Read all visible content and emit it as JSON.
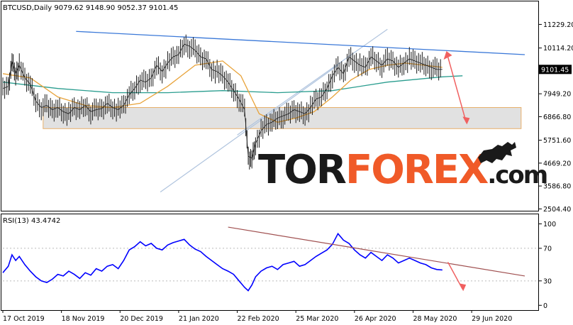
{
  "header": {
    "symbol_line": "BTCUSD,Daily  9079.62 9148.90 9052.37 9101.45"
  },
  "watermark": {
    "part1": "TOR",
    "part2": "FOREX",
    "part3": ".com",
    "color_dark": "#1a1a1a",
    "color_accent": "#f05a28"
  },
  "colors": {
    "price_bars": "#1a1a1a",
    "ma_fast": "#e8a33a",
    "ma_slow": "#2a9d8f",
    "resistance_line": "#3a78d8",
    "channel_line": "#b0c4de",
    "support_zone_fill": "#d9d9d9",
    "support_zone_border": "#e8b06a",
    "forecast_arrow": "#f06060",
    "rsi_line": "#0000ff",
    "rsi_trend": "#a05050",
    "current_price_box": "#000000"
  },
  "chart_data": [
    {
      "type": "candlestick",
      "title": "",
      "current_price": 9101.45,
      "current_price_label": "9101.45",
      "y_ticks": [
        11229.2,
        10114.2,
        7949.2,
        6866.8,
        5751.6,
        4669.2,
        3586.8,
        2504.4
      ],
      "y_tick_labels": [
        "11229.20",
        "10114.20",
        "7949.20",
        "6866.80",
        "5751.60",
        "4669.20",
        "3586.80",
        "2504.40"
      ],
      "ylim": [
        2450,
        12250
      ],
      "x_ticks": [
        "17 Oct 2019",
        "18 Nov 2019",
        "20 Dec 2019",
        "21 Jan 2020",
        "22 Feb 2020",
        "25 Mar 2020",
        "26 Apr 2020",
        "28 May 2020",
        "29 Jun 2020"
      ],
      "x_range_days": [
        0,
        285
      ],
      "x_tick_days": [
        0,
        32,
        64,
        96,
        128,
        160,
        192,
        224,
        256
      ],
      "price_path": [
        [
          0,
          8200
        ],
        [
          3,
          8300
        ],
        [
          5,
          9500
        ],
        [
          7,
          8900
        ],
        [
          9,
          9300
        ],
        [
          12,
          8700
        ],
        [
          15,
          8400
        ],
        [
          18,
          7600
        ],
        [
          21,
          7300
        ],
        [
          24,
          7400
        ],
        [
          27,
          7200
        ],
        [
          30,
          7300
        ],
        [
          33,
          7100
        ],
        [
          36,
          7000
        ],
        [
          39,
          7300
        ],
        [
          42,
          7200
        ],
        [
          45,
          7400
        ],
        [
          48,
          7100
        ],
        [
          51,
          7200
        ],
        [
          54,
          7250
        ],
        [
          57,
          7500
        ],
        [
          60,
          7300
        ],
        [
          63,
          7200
        ],
        [
          66,
          7400
        ],
        [
          69,
          7900
        ],
        [
          72,
          8200
        ],
        [
          75,
          8600
        ],
        [
          78,
          8500
        ],
        [
          81,
          8700
        ],
        [
          84,
          9300
        ],
        [
          87,
          9000
        ],
        [
          90,
          9400
        ],
        [
          93,
          9700
        ],
        [
          96,
          9800
        ],
        [
          99,
          10300
        ],
        [
          102,
          10200
        ],
        [
          105,
          10000
        ],
        [
          108,
          9700
        ],
        [
          111,
          9600
        ],
        [
          114,
          9100
        ],
        [
          117,
          9000
        ],
        [
          120,
          8800
        ],
        [
          123,
          8500
        ],
        [
          126,
          8100
        ],
        [
          129,
          7700
        ],
        [
          132,
          7200
        ],
        [
          134,
          5000
        ],
        [
          136,
          4900
        ],
        [
          138,
          5600
        ],
        [
          141,
          6200
        ],
        [
          144,
          6500
        ],
        [
          147,
          6600
        ],
        [
          150,
          6800
        ],
        [
          153,
          6900
        ],
        [
          156,
          7000
        ],
        [
          159,
          7200
        ],
        [
          162,
          7100
        ],
        [
          165,
          7000
        ],
        [
          168,
          7300
        ],
        [
          171,
          7700
        ],
        [
          174,
          7800
        ],
        [
          177,
          8200
        ],
        [
          180,
          8800
        ],
        [
          183,
          9200
        ],
        [
          186,
          8900
        ],
        [
          189,
          9700
        ],
        [
          192,
          9500
        ],
        [
          195,
          9300
        ],
        [
          198,
          9200
        ],
        [
          201,
          9700
        ],
        [
          204,
          9500
        ],
        [
          207,
          9300
        ],
        [
          210,
          9600
        ],
        [
          213,
          9500
        ],
        [
          216,
          9200
        ],
        [
          219,
          9400
        ],
        [
          222,
          9600
        ],
        [
          225,
          9500
        ],
        [
          228,
          9400
        ],
        [
          231,
          9300
        ],
        [
          234,
          9200
        ],
        [
          237,
          9100
        ],
        [
          240,
          9101
        ]
      ],
      "ma_fast_path": [
        [
          0,
          8900
        ],
        [
          15,
          8700
        ],
        [
          30,
          7800
        ],
        [
          45,
          7400
        ],
        [
          60,
          7300
        ],
        [
          75,
          7500
        ],
        [
          90,
          8300
        ],
        [
          105,
          9300
        ],
        [
          120,
          9500
        ],
        [
          130,
          8800
        ],
        [
          140,
          7000
        ],
        [
          150,
          6600
        ],
        [
          160,
          6800
        ],
        [
          170,
          7100
        ],
        [
          180,
          7800
        ],
        [
          190,
          8600
        ],
        [
          200,
          9100
        ],
        [
          210,
          9300
        ],
        [
          220,
          9400
        ],
        [
          230,
          9300
        ],
        [
          240,
          9200
        ]
      ],
      "ma_slow_path": [
        [
          0,
          8500
        ],
        [
          30,
          8200
        ],
        [
          60,
          8000
        ],
        [
          90,
          8000
        ],
        [
          120,
          8100
        ],
        [
          150,
          8000
        ],
        [
          180,
          8100
        ],
        [
          210,
          8500
        ],
        [
          240,
          8750
        ],
        [
          251,
          8800
        ]
      ],
      "resistance_line": [
        [
          40,
          10900
        ],
        [
          285,
          9800
        ]
      ],
      "channel_upper": [
        [
          128,
          6000
        ],
        [
          210,
          11000
        ]
      ],
      "channel_lower": [
        [
          86,
          3300
        ],
        [
          183,
          9300
        ]
      ],
      "support_zone": {
        "day_start": 22,
        "day_end": 283,
        "price_low": 6300,
        "price_high": 7300
      },
      "forecast_arrow": [
        [
          243,
          9700
        ],
        [
          253,
          6600
        ]
      ]
    },
    {
      "type": "line",
      "title": "",
      "indicator_label": "RSI(13) 43.4742",
      "y_ticks": [
        100,
        70,
        30,
        0
      ],
      "y_tick_labels": [
        "100",
        "70",
        "30",
        "0"
      ],
      "ylim": [
        -5,
        110
      ],
      "rsi_path": [
        [
          0,
          40
        ],
        [
          3,
          48
        ],
        [
          5,
          62
        ],
        [
          7,
          55
        ],
        [
          9,
          60
        ],
        [
          12,
          50
        ],
        [
          15,
          42
        ],
        [
          18,
          35
        ],
        [
          21,
          30
        ],
        [
          24,
          28
        ],
        [
          27,
          32
        ],
        [
          30,
          38
        ],
        [
          33,
          36
        ],
        [
          36,
          42
        ],
        [
          39,
          38
        ],
        [
          42,
          33
        ],
        [
          45,
          40
        ],
        [
          48,
          37
        ],
        [
          51,
          45
        ],
        [
          54,
          42
        ],
        [
          57,
          48
        ],
        [
          60,
          50
        ],
        [
          63,
          45
        ],
        [
          66,
          55
        ],
        [
          69,
          68
        ],
        [
          72,
          72
        ],
        [
          75,
          78
        ],
        [
          78,
          73
        ],
        [
          81,
          76
        ],
        [
          84,
          70
        ],
        [
          87,
          68
        ],
        [
          90,
          74
        ],
        [
          93,
          77
        ],
        [
          96,
          79
        ],
        [
          99,
          81
        ],
        [
          102,
          74
        ],
        [
          105,
          69
        ],
        [
          108,
          66
        ],
        [
          111,
          60
        ],
        [
          114,
          55
        ],
        [
          117,
          50
        ],
        [
          120,
          45
        ],
        [
          123,
          42
        ],
        [
          126,
          38
        ],
        [
          129,
          30
        ],
        [
          132,
          22
        ],
        [
          134,
          18
        ],
        [
          136,
          25
        ],
        [
          138,
          35
        ],
        [
          141,
          42
        ],
        [
          144,
          46
        ],
        [
          147,
          48
        ],
        [
          150,
          44
        ],
        [
          153,
          50
        ],
        [
          156,
          52
        ],
        [
          159,
          54
        ],
        [
          162,
          48
        ],
        [
          165,
          50
        ],
        [
          168,
          55
        ],
        [
          171,
          60
        ],
        [
          174,
          64
        ],
        [
          177,
          68
        ],
        [
          180,
          75
        ],
        [
          183,
          88
        ],
        [
          186,
          80
        ],
        [
          189,
          76
        ],
        [
          192,
          68
        ],
        [
          195,
          62
        ],
        [
          198,
          58
        ],
        [
          201,
          65
        ],
        [
          204,
          60
        ],
        [
          207,
          55
        ],
        [
          210,
          62
        ],
        [
          213,
          58
        ],
        [
          216,
          52
        ],
        [
          219,
          55
        ],
        [
          222,
          58
        ],
        [
          225,
          55
        ],
        [
          228,
          52
        ],
        [
          231,
          50
        ],
        [
          234,
          46
        ],
        [
          237,
          44
        ],
        [
          240,
          43.47
        ]
      ],
      "trend_line": [
        [
          123,
          96
        ],
        [
          285,
          36
        ]
      ],
      "forecast_arrow": [
        [
          243,
          53
        ],
        [
          251,
          20
        ]
      ]
    }
  ]
}
